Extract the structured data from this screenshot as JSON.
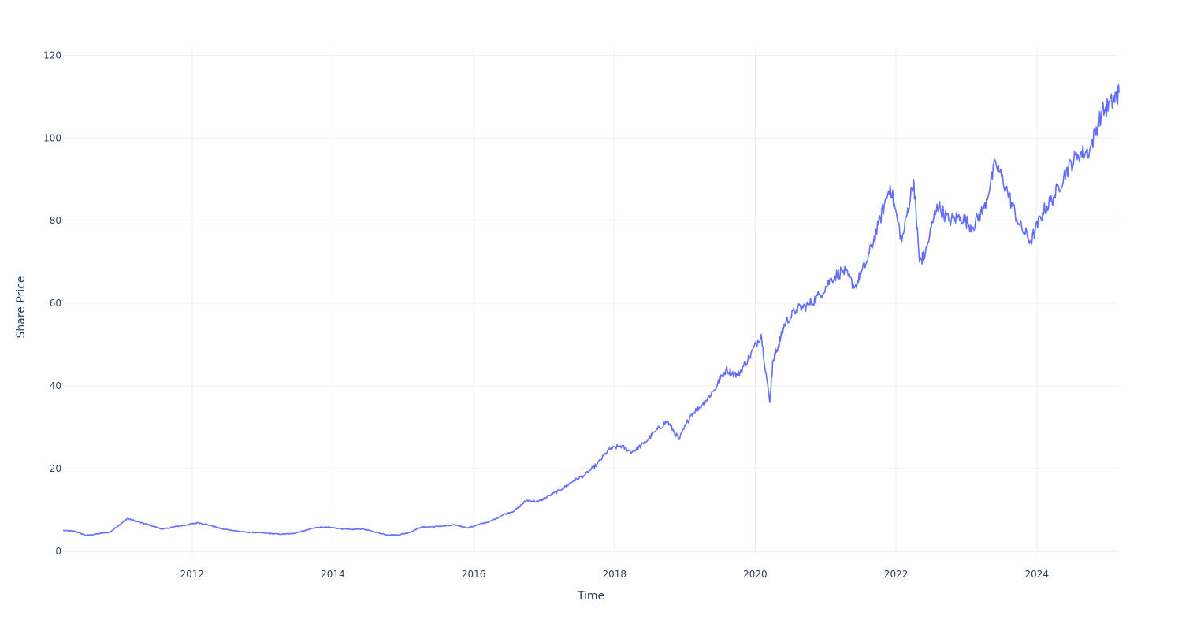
{
  "chart_data": {
    "type": "line",
    "title": "",
    "xlabel": "Time",
    "ylabel": "Share Price",
    "xlim": [
      "2010-03-01",
      "2025-03-01"
    ],
    "ylim": [
      -1,
      122
    ],
    "x_ticks": [
      "2012",
      "2014",
      "2016",
      "2018",
      "2020",
      "2022",
      "2024"
    ],
    "y_ticks": [
      0,
      20,
      40,
      60,
      80,
      100,
      120
    ],
    "grid": true,
    "legend": "none",
    "colors": {
      "line": "#636efa",
      "grid": "#ebf0f8",
      "text": "#2a3f5f"
    },
    "series": [
      {
        "x": [
          "2010-03-01",
          "2010-05-01",
          "2010-07-01",
          "2010-09-01",
          "2010-11-01",
          "2011-01-01",
          "2011-02-01",
          "2011-04-01",
          "2011-06-01",
          "2011-08-01",
          "2011-10-01",
          "2011-12-01",
          "2012-02-01",
          "2012-04-01",
          "2012-06-01",
          "2012-08-01",
          "2012-10-01",
          "2012-12-01",
          "2013-02-01",
          "2013-04-01",
          "2013-06-01",
          "2013-08-01",
          "2013-10-01",
          "2013-12-01",
          "2014-02-01",
          "2014-04-01",
          "2014-06-01",
          "2014-08-01",
          "2014-10-01",
          "2014-12-01",
          "2015-02-01",
          "2015-04-01",
          "2015-06-01",
          "2015-08-01",
          "2015-10-01",
          "2015-12-01",
          "2016-02-01",
          "2016-04-01",
          "2016-06-01",
          "2016-08-01",
          "2016-10-01",
          "2016-12-01",
          "2017-02-01",
          "2017-04-01",
          "2017-06-01",
          "2017-08-01",
          "2017-10-01",
          "2017-12-01",
          "2018-02-01",
          "2018-04-01",
          "2018-06-01",
          "2018-08-01",
          "2018-10-01",
          "2018-12-01",
          "2019-02-01",
          "2019-04-01",
          "2019-06-01",
          "2019-08-01",
          "2019-10-01",
          "2019-12-01",
          "2020-02-01",
          "2020-03-15",
          "2020-04-01",
          "2020-05-01",
          "2020-06-01",
          "2020-08-01",
          "2020-10-01",
          "2020-12-01",
          "2021-02-01",
          "2021-04-01",
          "2021-06-01",
          "2021-08-01",
          "2021-10-01",
          "2021-12-01",
          "2022-02-01",
          "2022-04-01",
          "2022-05-01",
          "2022-06-01",
          "2022-08-01",
          "2022-10-01",
          "2022-12-01",
          "2023-02-01",
          "2023-04-01",
          "2023-06-01",
          "2023-08-01",
          "2023-10-01",
          "2023-12-01",
          "2024-02-01",
          "2024-04-01",
          "2024-06-01",
          "2024-08-01",
          "2024-10-01",
          "2024-12-01",
          "2025-02-01",
          "2025-03-01"
        ],
        "y": [
          5.0,
          4.8,
          3.8,
          4.2,
          4.6,
          6.8,
          7.9,
          7.0,
          6.2,
          5.3,
          5.9,
          6.3,
          6.9,
          6.3,
          5.4,
          5.0,
          4.6,
          4.5,
          4.3,
          4.1,
          4.2,
          4.9,
          5.7,
          5.8,
          5.5,
          5.2,
          5.4,
          4.7,
          4.0,
          3.9,
          4.5,
          5.8,
          5.9,
          6.1,
          6.3,
          5.6,
          6.5,
          7.3,
          8.8,
          9.8,
          12.3,
          12.0,
          13.5,
          15.0,
          17.0,
          18.5,
          21.0,
          24.5,
          25.5,
          24.0,
          26.0,
          29.0,
          31.5,
          27.0,
          33.0,
          35.5,
          39.0,
          44.0,
          42.5,
          47.0,
          52.5,
          36.0,
          46.0,
          50.0,
          55.0,
          58.5,
          59.5,
          62.0,
          66.0,
          68.0,
          64.0,
          70.0,
          79.0,
          88.5,
          75.0,
          90.0,
          70.0,
          72.0,
          84.0,
          80.0,
          81.0,
          78.5,
          83.0,
          94.0,
          87.0,
          79.0,
          75.0,
          82.0,
          86.0,
          92.0,
          96.0,
          97.0,
          106.0,
          109.0,
          111.0
        ]
      }
    ]
  }
}
